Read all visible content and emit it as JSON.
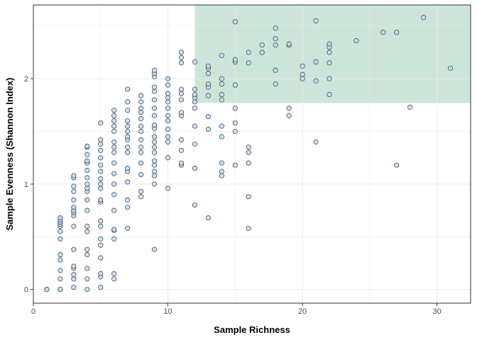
{
  "chart_data": {
    "type": "scatter",
    "title": "",
    "xlabel": "Sample Richness",
    "ylabel": "Sample Evenness (Shannon Index)",
    "xlim": [
      0,
      32.5
    ],
    "ylim": [
      -0.13,
      2.7
    ],
    "xticks": [
      0,
      10,
      20,
      30
    ],
    "yticks": [
      0,
      1,
      2
    ],
    "grid": true,
    "legend": "none",
    "highlight_region": {
      "x": [
        12,
        32.5
      ],
      "y": [
        1.77,
        2.7
      ],
      "color": "#cce5d8"
    },
    "point_fill": "#c6dbef",
    "point_stroke": "#2b3a4a",
    "points": [
      [
        1,
        0
      ],
      [
        1,
        0
      ],
      [
        2,
        0
      ],
      [
        2,
        0
      ],
      [
        2,
        0.1
      ],
      [
        2,
        0.18
      ],
      [
        2,
        0.28
      ],
      [
        2,
        0.33
      ],
      [
        2,
        0.48
      ],
      [
        2,
        0.55
      ],
      [
        2,
        0.6
      ],
      [
        2,
        0.62
      ],
      [
        2,
        0.64
      ],
      [
        2,
        0.66
      ],
      [
        2,
        0.68
      ],
      [
        3,
        0.02
      ],
      [
        3,
        0.1
      ],
      [
        3,
        0.14
      ],
      [
        3,
        0.2
      ],
      [
        3,
        0.22
      ],
      [
        3,
        0.38
      ],
      [
        3,
        0.6
      ],
      [
        3,
        0.7
      ],
      [
        3,
        0.73
      ],
      [
        3,
        0.75
      ],
      [
        3,
        0.78
      ],
      [
        3,
        0.85
      ],
      [
        3,
        0.93
      ],
      [
        3,
        0.98
      ],
      [
        3,
        1.06
      ],
      [
        3,
        1.08
      ],
      [
        4,
        0
      ],
      [
        4,
        0.1
      ],
      [
        4,
        0.2
      ],
      [
        4,
        0.33
      ],
      [
        4,
        0.38
      ],
      [
        4,
        0.55
      ],
      [
        4,
        0.6
      ],
      [
        4,
        0.75
      ],
      [
        4,
        0.85
      ],
      [
        4,
        0.93
      ],
      [
        4,
        0.96
      ],
      [
        4,
        1.0
      ],
      [
        4,
        1.06
      ],
      [
        4,
        1.13
      ],
      [
        4,
        1.2
      ],
      [
        4,
        1.22
      ],
      [
        4,
        1.28
      ],
      [
        4,
        1.35
      ],
      [
        4,
        1.36
      ],
      [
        5,
        0.02
      ],
      [
        5,
        0.12
      ],
      [
        5,
        0.15
      ],
      [
        5,
        0.3
      ],
      [
        5,
        0.42
      ],
      [
        5,
        0.48
      ],
      [
        5,
        0.6
      ],
      [
        5,
        0.65
      ],
      [
        5,
        0.83
      ],
      [
        5,
        0.85
      ],
      [
        5,
        0.96
      ],
      [
        5,
        1.0
      ],
      [
        5,
        1.05
      ],
      [
        5,
        1.12
      ],
      [
        5,
        1.18
      ],
      [
        5,
        1.25
      ],
      [
        5,
        1.32
      ],
      [
        5,
        1.38
      ],
      [
        5,
        1.42
      ],
      [
        5,
        1.58
      ],
      [
        6,
        0.1
      ],
      [
        6,
        0.15
      ],
      [
        6,
        0.48
      ],
      [
        6,
        0.56
      ],
      [
        6,
        0.57
      ],
      [
        6,
        0.75
      ],
      [
        6,
        0.9
      ],
      [
        6,
        1.0
      ],
      [
        6,
        1.1
      ],
      [
        6,
        1.2
      ],
      [
        6,
        1.3
      ],
      [
        6,
        1.35
      ],
      [
        6,
        1.4
      ],
      [
        6,
        1.5
      ],
      [
        6,
        1.55
      ],
      [
        6,
        1.6
      ],
      [
        6,
        1.65
      ],
      [
        6,
        1.7
      ],
      [
        7,
        0.58
      ],
      [
        7,
        0.78
      ],
      [
        7,
        0.85
      ],
      [
        7,
        1.02
      ],
      [
        7,
        1.12
      ],
      [
        7,
        1.15
      ],
      [
        7,
        1.3
      ],
      [
        7,
        1.35
      ],
      [
        7,
        1.42
      ],
      [
        7,
        1.45
      ],
      [
        7,
        1.5
      ],
      [
        7,
        1.55
      ],
      [
        7,
        1.6
      ],
      [
        7,
        1.7
      ],
      [
        7,
        1.78
      ],
      [
        7,
        1.9
      ],
      [
        8,
        0.88
      ],
      [
        8,
        0.93
      ],
      [
        8,
        1.09
      ],
      [
        8,
        1.2
      ],
      [
        8,
        1.3
      ],
      [
        8,
        1.35
      ],
      [
        8,
        1.42
      ],
      [
        8,
        1.5
      ],
      [
        8,
        1.55
      ],
      [
        8,
        1.62
      ],
      [
        8,
        1.68
      ],
      [
        8,
        1.72
      ],
      [
        8,
        1.78
      ],
      [
        8,
        1.84
      ],
      [
        9,
        0.38
      ],
      [
        9,
        1.0
      ],
      [
        9,
        1.08
      ],
      [
        9,
        1.12
      ],
      [
        9,
        1.18
      ],
      [
        9,
        1.22
      ],
      [
        9,
        1.3
      ],
      [
        9,
        1.35
      ],
      [
        9,
        1.4
      ],
      [
        9,
        1.45
      ],
      [
        9,
        1.53
      ],
      [
        9,
        1.56
      ],
      [
        9,
        1.65
      ],
      [
        9,
        1.72
      ],
      [
        9,
        1.8
      ],
      [
        9,
        1.88
      ],
      [
        9,
        1.92
      ],
      [
        9,
        2.02
      ],
      [
        9,
        2.05
      ],
      [
        9,
        2.08
      ],
      [
        10,
        0.96
      ],
      [
        10,
        1.25
      ],
      [
        10,
        1.4
      ],
      [
        10,
        1.45
      ],
      [
        10,
        1.52
      ],
      [
        10,
        1.6
      ],
      [
        10,
        1.65
      ],
      [
        10,
        1.72
      ],
      [
        10,
        1.78
      ],
      [
        10,
        1.82
      ],
      [
        10,
        1.86
      ],
      [
        10,
        1.94
      ],
      [
        10,
        2.0
      ],
      [
        11,
        1.18
      ],
      [
        11,
        1.2
      ],
      [
        11,
        1.32
      ],
      [
        11,
        1.42
      ],
      [
        11,
        1.65
      ],
      [
        11,
        1.68
      ],
      [
        11,
        1.8
      ],
      [
        11,
        1.86
      ],
      [
        11,
        1.9
      ],
      [
        11,
        2.15
      ],
      [
        11,
        2.2
      ],
      [
        11,
        2.25
      ],
      [
        12,
        0.8
      ],
      [
        12,
        1.15
      ],
      [
        12,
        1.38
      ],
      [
        12,
        1.55
      ],
      [
        12,
        1.72
      ],
      [
        12,
        1.78
      ],
      [
        12,
        1.82
      ],
      [
        12,
        1.85
      ],
      [
        12,
        1.9
      ],
      [
        12,
        2.16
      ],
      [
        13,
        0.68
      ],
      [
        13,
        1.52
      ],
      [
        13,
        1.64
      ],
      [
        13,
        1.84
      ],
      [
        13,
        1.92
      ],
      [
        13,
        1.95
      ],
      [
        13,
        2.05
      ],
      [
        13,
        2.1
      ],
      [
        13,
        2.12
      ],
      [
        14,
        1.08
      ],
      [
        14,
        1.12
      ],
      [
        14,
        1.2
      ],
      [
        14,
        1.45
      ],
      [
        14,
        1.55
      ],
      [
        14,
        1.8
      ],
      [
        14,
        1.85
      ],
      [
        14,
        1.95
      ],
      [
        14,
        2.0
      ],
      [
        14,
        2.22
      ],
      [
        15,
        1.18
      ],
      [
        15,
        1.5
      ],
      [
        15,
        1.58
      ],
      [
        15,
        1.72
      ],
      [
        15,
        1.94
      ],
      [
        15,
        2.16
      ],
      [
        15,
        2.18
      ],
      [
        15,
        2.54
      ],
      [
        16,
        0.58
      ],
      [
        16,
        0.88
      ],
      [
        16,
        1.2
      ],
      [
        16,
        1.3
      ],
      [
        16,
        1.35
      ],
      [
        16,
        2.15
      ],
      [
        16,
        2.25
      ],
      [
        17,
        2.25
      ],
      [
        17,
        2.32
      ],
      [
        18,
        1.95
      ],
      [
        18,
        2.08
      ],
      [
        18,
        2.32
      ],
      [
        18,
        2.38
      ],
      [
        18,
        2.48
      ],
      [
        19,
        1.65
      ],
      [
        19,
        1.72
      ],
      [
        19,
        2.32
      ],
      [
        19,
        2.33
      ],
      [
        20,
        2.0
      ],
      [
        20,
        2.04
      ],
      [
        20,
        2.12
      ],
      [
        21,
        1.4
      ],
      [
        21,
        1.98
      ],
      [
        21,
        2.16
      ],
      [
        21,
        2.55
      ],
      [
        22,
        1.85
      ],
      [
        22,
        2.0
      ],
      [
        22,
        2.15
      ],
      [
        22,
        2.25
      ],
      [
        22,
        2.3
      ],
      [
        22,
        2.33
      ],
      [
        24,
        2.36
      ],
      [
        26,
        2.44
      ],
      [
        27,
        1.18
      ],
      [
        27,
        2.44
      ],
      [
        28,
        1.73
      ],
      [
        29,
        2.58
      ],
      [
        31,
        2.1
      ]
    ]
  }
}
